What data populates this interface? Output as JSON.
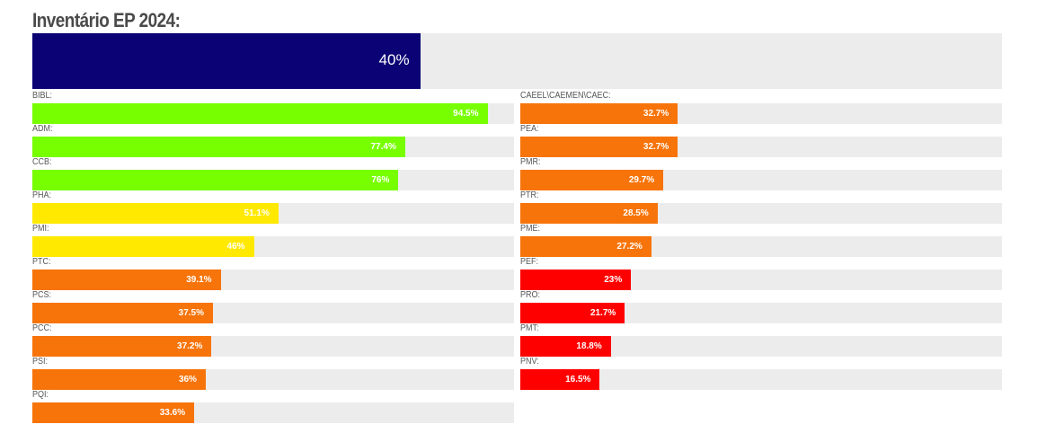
{
  "chart_data": {
    "type": "bar",
    "title": "Inventário EP 2024:",
    "overall": {
      "label": "40%",
      "value": 40
    },
    "xlim": [
      0,
      100
    ],
    "colors": {
      "track": "#ececec",
      "overall": "#0b0275",
      "green": "#77ff00",
      "yellow": "#ffe900",
      "orange": "#f7740a",
      "red": "#ff0000"
    },
    "columns": [
      [
        {
          "name": "BIBL:",
          "label": "94.5%",
          "value": 94.5,
          "color": "#77ff00"
        },
        {
          "name": "ADM:",
          "label": "77.4%",
          "value": 77.4,
          "color": "#77ff00"
        },
        {
          "name": "CCB:",
          "label": "76%",
          "value": 76,
          "color": "#77ff00"
        },
        {
          "name": "PHA:",
          "label": "51.1%",
          "value": 51.1,
          "color": "#ffe900"
        },
        {
          "name": "PMI:",
          "label": "46%",
          "value": 46,
          "color": "#ffe900"
        },
        {
          "name": "PTC:",
          "label": "39.1%",
          "value": 39.1,
          "color": "#f7740a"
        },
        {
          "name": "PCS:",
          "label": "37.5%",
          "value": 37.5,
          "color": "#f7740a"
        },
        {
          "name": "PCC:",
          "label": "37.2%",
          "value": 37.2,
          "color": "#f7740a"
        },
        {
          "name": "PSI:",
          "label": "36%",
          "value": 36,
          "color": "#f7740a"
        },
        {
          "name": "PQI:",
          "label": "33.6%",
          "value": 33.6,
          "color": "#f7740a"
        }
      ],
      [
        {
          "name": "CAEEL\\CAEMEN\\CAEC:",
          "label": "32.7%",
          "value": 32.7,
          "color": "#f7740a"
        },
        {
          "name": "PEA:",
          "label": "32.7%",
          "value": 32.7,
          "color": "#f7740a"
        },
        {
          "name": "PMR:",
          "label": "29.7%",
          "value": 29.7,
          "color": "#f7740a"
        },
        {
          "name": "PTR:",
          "label": "28.5%",
          "value": 28.5,
          "color": "#f7740a"
        },
        {
          "name": "PME:",
          "label": "27.2%",
          "value": 27.2,
          "color": "#f7740a"
        },
        {
          "name": "PEF:",
          "label": "23%",
          "value": 23,
          "color": "#ff0000"
        },
        {
          "name": "PRO:",
          "label": "21.7%",
          "value": 21.7,
          "color": "#ff0000"
        },
        {
          "name": "PMT:",
          "label": "18.8%",
          "value": 18.8,
          "color": "#ff0000"
        },
        {
          "name": "PNV:",
          "label": "16.5%",
          "value": 16.5,
          "color": "#ff0000"
        }
      ]
    ]
  }
}
